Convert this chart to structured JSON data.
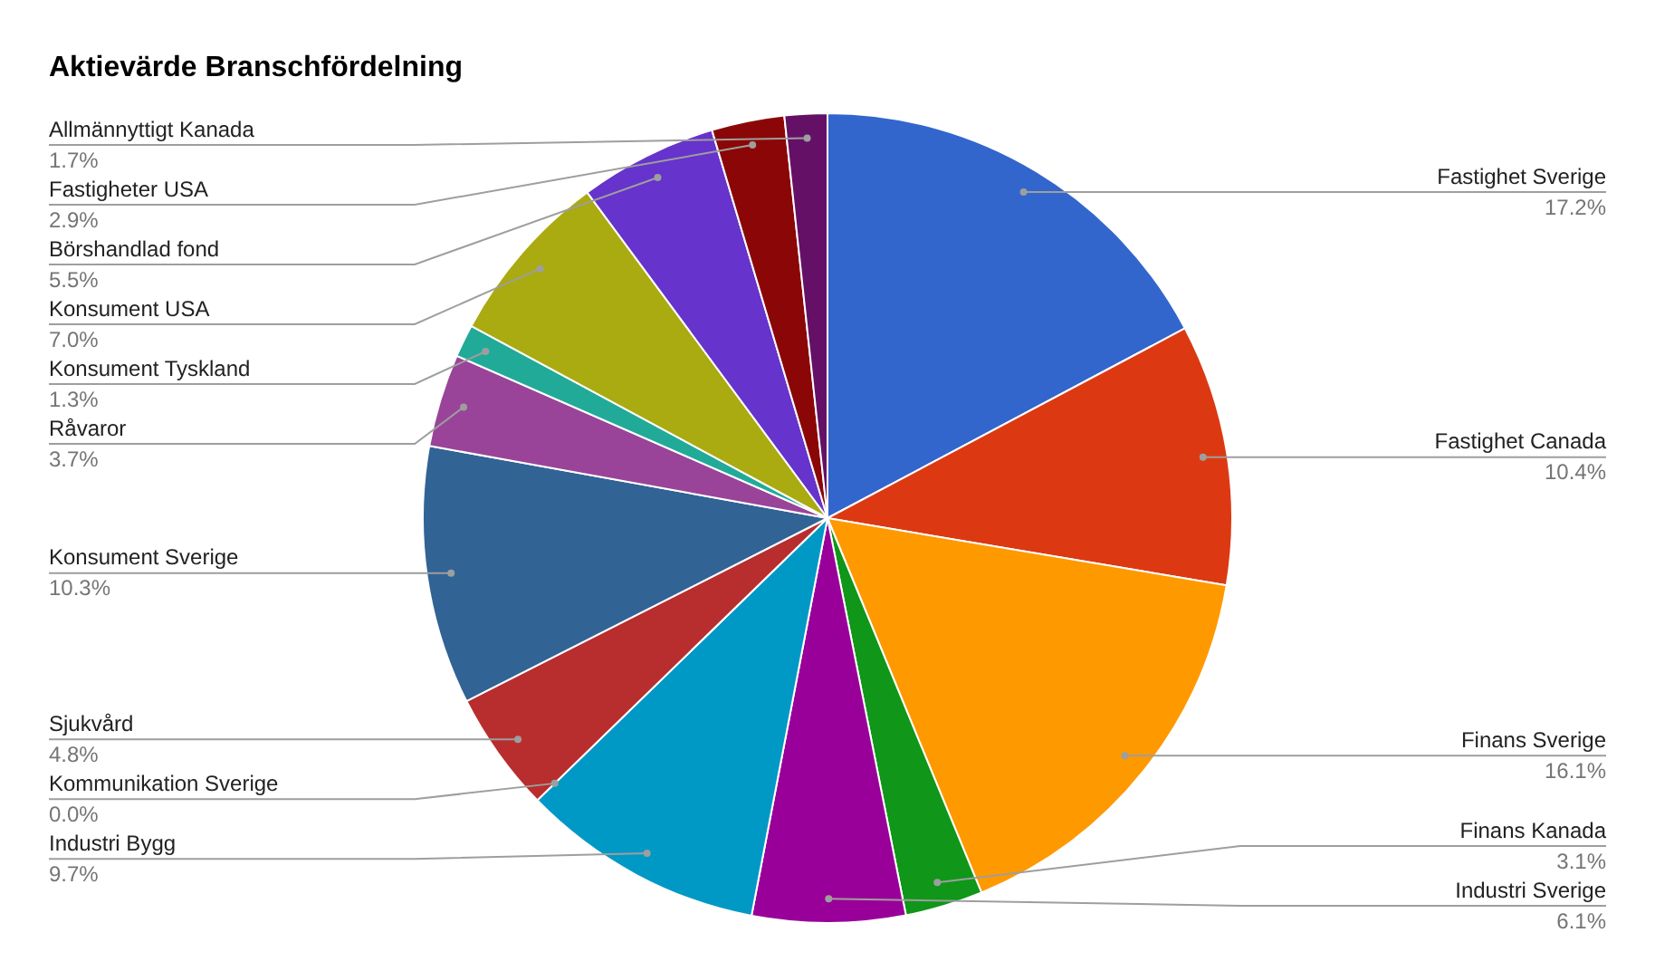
{
  "chart_data": {
    "type": "pie",
    "title": "Aktievärde Branschfördelning",
    "categories": [
      "Fastighet Sverige",
      "Fastighet Canada",
      "Finans Sverige",
      "Finans Kanada",
      "Industri Sverige",
      "Industri Bygg",
      "Kommunikation Sverige",
      "Sjukvård",
      "Konsument Sverige",
      "Råvaror",
      "Konsument Tyskland",
      "Konsument USA",
      "Börshandlad fond",
      "Fastigheter USA",
      "Allmännyttigt Kanada"
    ],
    "values": [
      17.2,
      10.4,
      16.1,
      3.1,
      6.1,
      9.7,
      0.0,
      4.8,
      10.3,
      3.7,
      1.3,
      7.0,
      5.5,
      2.9,
      1.7
    ],
    "value_labels": [
      "17.2%",
      "10.4%",
      "16.1%",
      "3.1%",
      "6.1%",
      "9.7%",
      "0.0%",
      "4.8%",
      "10.3%",
      "3.7%",
      "1.3%",
      "7.0%",
      "5.5%",
      "2.9%",
      "1.7%"
    ],
    "colors": [
      "#3366cc",
      "#dc3912",
      "#ff9900",
      "#109618",
      "#990099",
      "#0099c6",
      "#dd4477",
      "#b82e2e",
      "#316395",
      "#994499",
      "#22aa99",
      "#aaaa11",
      "#6633cc",
      "#8b0707",
      "#651067"
    ],
    "legend": false
  }
}
